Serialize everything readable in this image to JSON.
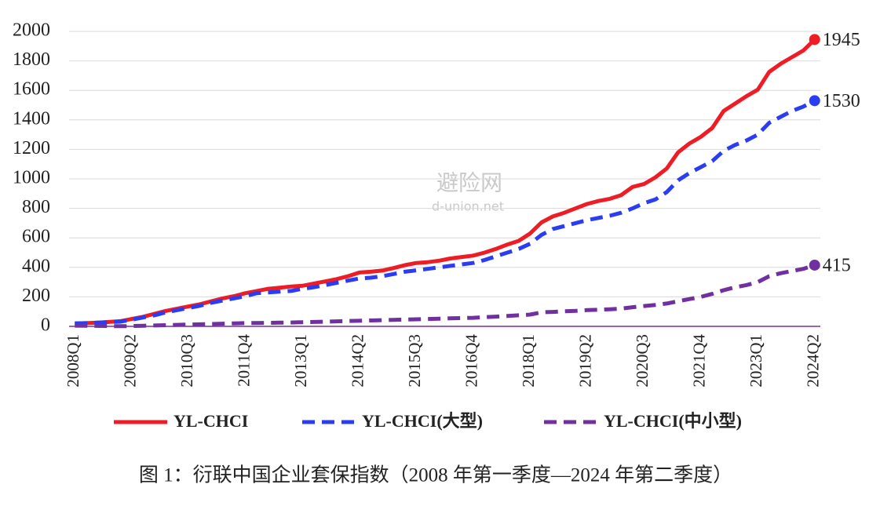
{
  "chart_data": {
    "type": "line",
    "caption": "图 1：衍联中国企业套保指数（2008 年第一季度—2024 年第二季度）",
    "watermark": [
      "避险网",
      "d-union.net"
    ],
    "categories": [
      "2008Q1",
      null,
      null,
      null,
      null,
      "2009Q2",
      null,
      null,
      null,
      null,
      "2010Q3",
      null,
      null,
      null,
      null,
      "2011Q4",
      null,
      null,
      null,
      null,
      "2013Q1",
      null,
      null,
      null,
      null,
      "2014Q2",
      null,
      null,
      null,
      null,
      "2015Q3",
      null,
      null,
      null,
      null,
      "2016Q4",
      null,
      null,
      null,
      null,
      "2018Q1",
      null,
      null,
      null,
      null,
      "2019Q2",
      null,
      null,
      null,
      null,
      "2020Q3",
      null,
      null,
      null,
      null,
      "2021Q4",
      null,
      null,
      null,
      null,
      "2023Q1",
      null,
      null,
      null,
      null,
      "2024Q2"
    ],
    "series": [
      {
        "name": "YL-CHCI",
        "color": "#ee1c25",
        "line_style": "solid",
        "values": [
          20,
          22,
          25,
          30,
          35,
          50,
          65,
          85,
          105,
          120,
          135,
          150,
          170,
          190,
          205,
          225,
          240,
          255,
          262,
          270,
          275,
          290,
          305,
          320,
          340,
          365,
          370,
          378,
          395,
          415,
          430,
          435,
          445,
          460,
          470,
          480,
          500,
          525,
          555,
          580,
          630,
          705,
          745,
          770,
          800,
          830,
          850,
          865,
          890,
          945,
          965,
          1010,
          1070,
          1180,
          1240,
          1285,
          1345,
          1460,
          1510,
          1560,
          1605,
          1725,
          1780,
          1825,
          1870,
          1945
        ]
      },
      {
        "name": "YL-CHCI(大型)",
        "color": "#2b3df2",
        "line_style": "dashed",
        "values": [
          20,
          22,
          25,
          28,
          32,
          45,
          60,
          75,
          95,
          110,
          125,
          140,
          160,
          175,
          190,
          205,
          225,
          230,
          235,
          240,
          255,
          265,
          280,
          295,
          310,
          325,
          330,
          340,
          355,
          370,
          380,
          390,
          400,
          410,
          420,
          430,
          450,
          475,
          500,
          525,
          560,
          620,
          660,
          680,
          700,
          720,
          735,
          750,
          770,
          800,
          835,
          860,
          910,
          990,
          1040,
          1080,
          1120,
          1190,
          1230,
          1260,
          1300,
          1380,
          1420,
          1460,
          1490,
          1530
        ]
      },
      {
        "name": "YL-CHCI(中小型)",
        "color": "#7030a0",
        "line_style": "dashed",
        "values": [
          5,
          4,
          3,
          2,
          1,
          2,
          4,
          6,
          8,
          10,
          12,
          14,
          16,
          18,
          20,
          22,
          23,
          24,
          25,
          26,
          28,
          30,
          32,
          34,
          36,
          38,
          40,
          42,
          44,
          46,
          48,
          50,
          52,
          54,
          56,
          58,
          62,
          66,
          70,
          75,
          80,
          95,
          98,
          102,
          105,
          110,
          113,
          116,
          120,
          130,
          138,
          145,
          155,
          170,
          185,
          200,
          220,
          245,
          265,
          280,
          300,
          340,
          360,
          375,
          390,
          415
        ]
      }
    ],
    "ylim": [
      0,
      2000
    ],
    "yticks": [
      0,
      200,
      400,
      600,
      800,
      1000,
      1200,
      1400,
      1600,
      1800,
      2000
    ],
    "grid": true,
    "legend": "bottom"
  }
}
